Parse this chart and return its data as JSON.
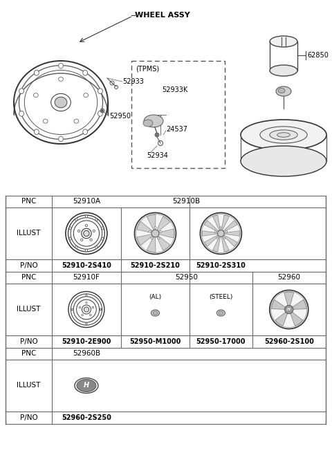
{
  "bg_color": "#ffffff",
  "diagram_title": "WHEEL ASSY",
  "fig_width": 4.8,
  "fig_height": 6.55,
  "dpi": 100,
  "grid_color": "#666666",
  "text_color": "#000000",
  "part_numbers": {
    "row0": [
      "PNC",
      "52910A",
      "52910B"
    ],
    "row2": [
      "P/NO",
      "52910-2S410",
      "52910-2S210",
      "52910-2S310"
    ],
    "row3": [
      "PNC",
      "52910F",
      "52950",
      "52960"
    ],
    "row5": [
      "P/NO",
      "52910-2E900",
      "52950-M1000",
      "52950-17000",
      "52960-2S100"
    ],
    "row6": [
      "PNC",
      "52960B"
    ],
    "row8": [
      "P/NO",
      "52960-2S250"
    ]
  },
  "labels_top": {
    "wheel_assy": "WHEEL ASSY",
    "part52933": "52933",
    "part52950": "52950",
    "tpms": "(TPMS)",
    "part52933K": "52933K",
    "part24537": "24537",
    "part52934": "52934",
    "part62850": "62850"
  },
  "illust_labels": {
    "al": "(AL)",
    "steel": "(STEEL)"
  }
}
